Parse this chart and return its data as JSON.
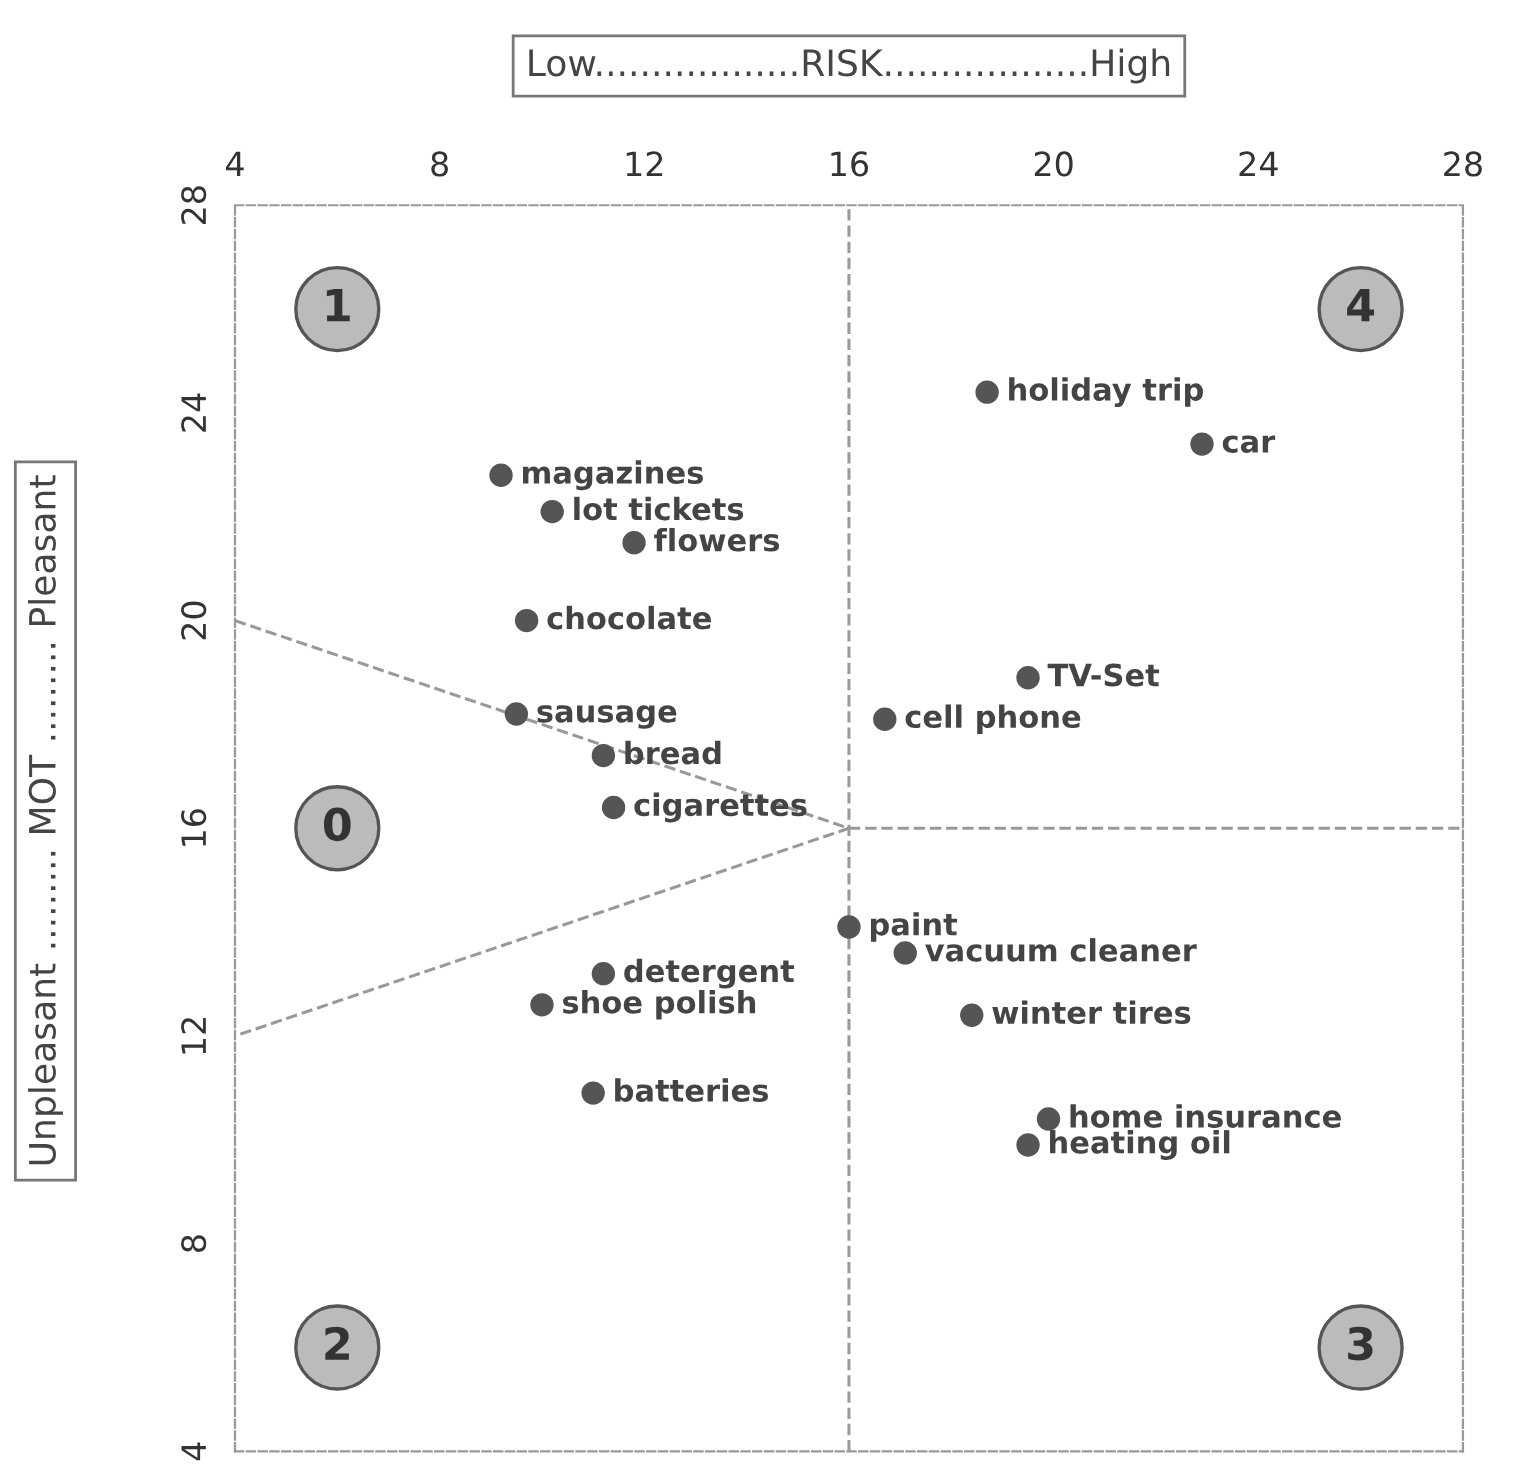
{
  "chart_data": {
    "type": "scatter",
    "xlabel": "Low..................RISK..................High",
    "ylabel": "Unpleasant ......... MOT ......... Pleasant",
    "xlim": [
      4,
      28
    ],
    "xticks": [
      4,
      8,
      12,
      16,
      20,
      24,
      28
    ],
    "ylim": [
      4,
      28
    ],
    "yticks": [
      4,
      8,
      12,
      16,
      20,
      24,
      28
    ],
    "grid": false,
    "ref_lines": [
      {
        "axis": "x",
        "value": 16,
        "color": "#999999",
        "line_style": "dashed"
      }
    ],
    "series": [
      {
        "color": "#555555",
        "marker": "circle",
        "x": [
          18.7,
          22.9,
          9.2,
          10.2,
          11.8,
          9.7,
          19.5,
          16.7,
          9.5,
          11.2,
          11.4,
          16.0,
          17.1,
          11.2,
          10.0,
          18.4,
          11.0,
          19.9,
          19.5
        ],
        "values": [
          24.4,
          23.4,
          22.8,
          22.1,
          21.5,
          20.0,
          18.9,
          18.1,
          18.2,
          17.4,
          16.4,
          14.1,
          13.6,
          13.2,
          12.6,
          12.4,
          10.9,
          10.4,
          9.9
        ]
      },
      {
        "type": "line",
        "color": "#999999",
        "line_style": "dashed",
        "marker": "none",
        "x": [
          16,
          28
        ],
        "values": [
          16,
          16
        ]
      },
      {
        "type": "line",
        "color": "#999999",
        "line_style": "dashed",
        "marker": "none",
        "x": [
          4,
          16,
          4
        ],
        "values": [
          20,
          16,
          12
        ]
      }
    ],
    "annotations": [
      {
        "text": "holiday trip",
        "x": 18.7,
        "y": 24.4
      },
      {
        "text": "car",
        "x": 22.9,
        "y": 23.4
      },
      {
        "text": "magazines",
        "x": 9.2,
        "y": 22.8
      },
      {
        "text": "lot tickets",
        "x": 10.2,
        "y": 22.1
      },
      {
        "text": "flowers",
        "x": 11.8,
        "y": 21.5
      },
      {
        "text": "chocolate",
        "x": 9.7,
        "y": 20.0
      },
      {
        "text": "TV-Set",
        "x": 19.5,
        "y": 18.9
      },
      {
        "text": "cell phone",
        "x": 16.7,
        "y": 18.1
      },
      {
        "text": "sausage",
        "x": 9.5,
        "y": 18.2
      },
      {
        "text": "bread",
        "x": 11.2,
        "y": 17.4
      },
      {
        "text": "cigarettes",
        "x": 11.4,
        "y": 16.4
      },
      {
        "text": "paint",
        "x": 16.0,
        "y": 14.1
      },
      {
        "text": "vacuum cleaner",
        "x": 17.1,
        "y": 13.6
      },
      {
        "text": "detergent",
        "x": 11.2,
        "y": 13.2
      },
      {
        "text": "shoe polish",
        "x": 10.0,
        "y": 12.6
      },
      {
        "text": "winter tires",
        "x": 18.4,
        "y": 12.4
      },
      {
        "text": "batteries",
        "x": 11.0,
        "y": 10.9
      },
      {
        "text": "home insurance",
        "x": 19.9,
        "y": 10.4
      },
      {
        "text": "heating oil",
        "x": 19.5,
        "y": 9.9
      },
      {
        "text": "1",
        "x": 6,
        "y": 26
      },
      {
        "text": "4",
        "x": 26,
        "y": 26
      },
      {
        "text": "0",
        "x": 6,
        "y": 16
      },
      {
        "text": "2",
        "x": 6,
        "y": 6
      },
      {
        "text": "3",
        "x": 26,
        "y": 6
      }
    ]
  }
}
